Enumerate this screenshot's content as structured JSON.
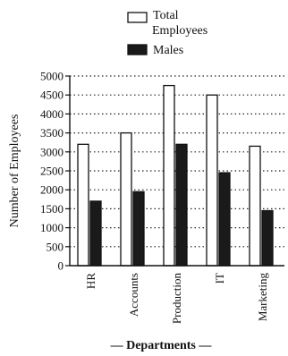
{
  "chart_data": {
    "type": "bar",
    "categories": [
      "HR",
      "Accounts",
      "Production",
      "IT",
      "Marketing"
    ],
    "series": [
      {
        "name": "Total Employees",
        "values": [
          3200,
          3500,
          4750,
          4500,
          3150
        ],
        "color": "#ffffff"
      },
      {
        "name": "Males",
        "values": [
          1700,
          1950,
          3200,
          2450,
          1450
        ],
        "color": "#1a1a1a"
      }
    ],
    "legend": {
      "entries": [
        "Total\nEmployees",
        "Males"
      ],
      "placement": "top-right"
    },
    "xlabel": "— Departments —",
    "ylabel": "Number of Employees",
    "ylim": [
      0,
      5000
    ],
    "yticks": [
      "0",
      "500",
      "1000",
      "1500",
      "2000",
      "2500",
      "3000",
      "3500",
      "4000",
      "4500",
      "5000"
    ],
    "grid": "dotted horizontal"
  }
}
